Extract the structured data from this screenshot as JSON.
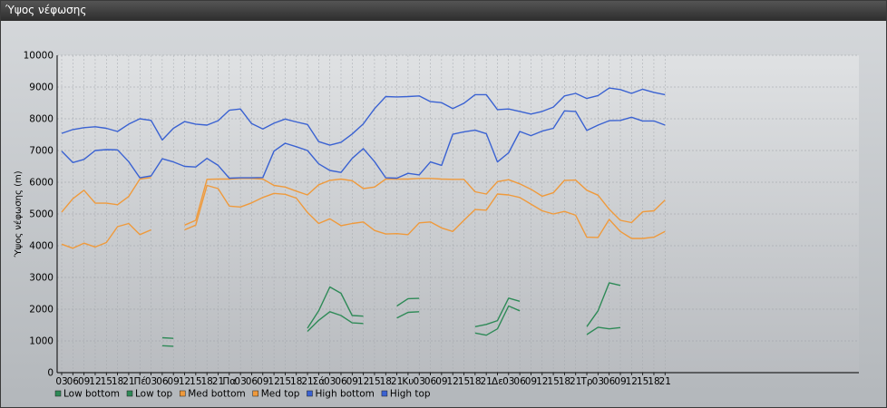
{
  "window": {
    "title": "Ύψος νέφωσης"
  },
  "colors": {
    "low": "#2e8a57",
    "med": "#ef9a3c",
    "high": "#3a62d2"
  },
  "chart_data": {
    "type": "line",
    "title": "",
    "xlabel": "",
    "ylabel": "Ύψος νέφωσης (m)",
    "ylim": [
      0,
      10000
    ],
    "yticks": [
      0,
      1000,
      2000,
      3000,
      4000,
      5000,
      6000,
      7000,
      8000,
      9000,
      10000
    ],
    "grid": true,
    "legend_position": "bottom-left",
    "x": [
      "03",
      "06",
      "09",
      "12",
      "15",
      "18",
      "21",
      "Πέ",
      "03",
      "06",
      "09",
      "12",
      "15",
      "18",
      "21",
      "Πα",
      "03",
      "06",
      "09",
      "12",
      "15",
      "18",
      "21",
      "Σά",
      "03",
      "06",
      "09",
      "12",
      "15",
      "18",
      "21",
      "Κυ",
      "03",
      "06",
      "09",
      "12",
      "15",
      "18",
      "21",
      "Δε",
      "03",
      "06",
      "09",
      "12",
      "15",
      "18",
      "21",
      "Τρ",
      "03",
      "06",
      "09",
      "12",
      "15",
      "18",
      "21"
    ],
    "series": [
      {
        "name": "Low bottom",
        "color": "#2e8a57",
        "values": [
          null,
          null,
          null,
          null,
          null,
          null,
          null,
          null,
          null,
          850,
          830,
          null,
          null,
          null,
          null,
          null,
          null,
          null,
          null,
          null,
          null,
          null,
          1300,
          1650,
          1920,
          1800,
          1570,
          1550,
          null,
          null,
          1720,
          1900,
          1920,
          null,
          null,
          null,
          null,
          1250,
          1180,
          1380,
          2100,
          1950,
          null,
          null,
          null,
          null,
          null,
          1200,
          1430,
          1380,
          1420,
          null,
          null,
          null,
          null
        ]
      },
      {
        "name": "Low top",
        "color": "#2e8a57",
        "values": [
          null,
          null,
          null,
          null,
          null,
          null,
          null,
          null,
          null,
          1100,
          1080,
          null,
          null,
          null,
          null,
          null,
          null,
          null,
          null,
          null,
          null,
          null,
          1400,
          1950,
          2700,
          2500,
          1800,
          1780,
          null,
          null,
          2100,
          2330,
          2340,
          null,
          null,
          null,
          null,
          1450,
          1520,
          1640,
          2350,
          2250,
          null,
          null,
          null,
          null,
          null,
          1450,
          1950,
          2830,
          2750,
          null,
          null,
          null,
          null
        ]
      },
      {
        "name": "Med bottom",
        "color": "#ef9a3c",
        "values": [
          4050,
          3920,
          4080,
          3960,
          4100,
          4600,
          4700,
          4350,
          4500,
          null,
          null,
          4500,
          4650,
          5900,
          5800,
          5250,
          5220,
          5350,
          5520,
          5650,
          5620,
          5500,
          5050,
          4700,
          4850,
          4630,
          4700,
          4750,
          4480,
          4370,
          4380,
          4350,
          4720,
          4750,
          4560,
          4450,
          4800,
          5140,
          5120,
          5630,
          5600,
          5520,
          5310,
          5100,
          5000,
          5080,
          4960,
          4270,
          4260,
          4830,
          4450,
          4230,
          4230,
          4270,
          4450
        ]
      },
      {
        "name": "Med top",
        "color": "#ef9a3c",
        "values": [
          5060,
          5480,
          5750,
          5340,
          5340,
          5290,
          5550,
          6100,
          6150,
          null,
          null,
          4650,
          4800,
          6090,
          6100,
          6100,
          6120,
          6120,
          6100,
          5900,
          5850,
          5720,
          5600,
          5920,
          6060,
          6100,
          6050,
          5800,
          5850,
          6100,
          6100,
          6100,
          6120,
          6120,
          6100,
          6090,
          6090,
          5700,
          5630,
          6020,
          6080,
          5950,
          5780,
          5560,
          5670,
          6060,
          6070,
          5750,
          5590,
          5150,
          4800,
          4730,
          5070,
          5100,
          5440
        ]
      },
      {
        "name": "High bottom",
        "color": "#3a62d2",
        "values": [
          6980,
          6620,
          6720,
          7000,
          7030,
          7020,
          6650,
          6140,
          6200,
          6740,
          6640,
          6500,
          6480,
          6750,
          6530,
          6130,
          6140,
          6140,
          6150,
          6980,
          7230,
          7120,
          7000,
          6580,
          6370,
          6310,
          6750,
          7060,
          6650,
          6140,
          6130,
          6280,
          6230,
          6640,
          6530,
          7510,
          7590,
          7640,
          7530,
          6640,
          6930,
          7600,
          7470,
          7610,
          7700,
          8250,
          8230,
          7630,
          7800,
          7940,
          7950,
          8050,
          7930,
          7930,
          7800
        ]
      },
      {
        "name": "High top",
        "color": "#3a62d2",
        "values": [
          7540,
          7660,
          7720,
          7750,
          7700,
          7600,
          7830,
          8000,
          7950,
          7330,
          7700,
          7910,
          7830,
          7800,
          7940,
          8270,
          8310,
          7850,
          7680,
          7860,
          7990,
          7900,
          7820,
          7280,
          7170,
          7260,
          7520,
          7840,
          8320,
          8700,
          8690,
          8700,
          8720,
          8540,
          8510,
          8320,
          8490,
          8760,
          8760,
          8290,
          8310,
          8230,
          8150,
          8230,
          8370,
          8720,
          8800,
          8640,
          8730,
          8970,
          8920,
          8800,
          8930,
          8830,
          8760
        ]
      }
    ]
  }
}
